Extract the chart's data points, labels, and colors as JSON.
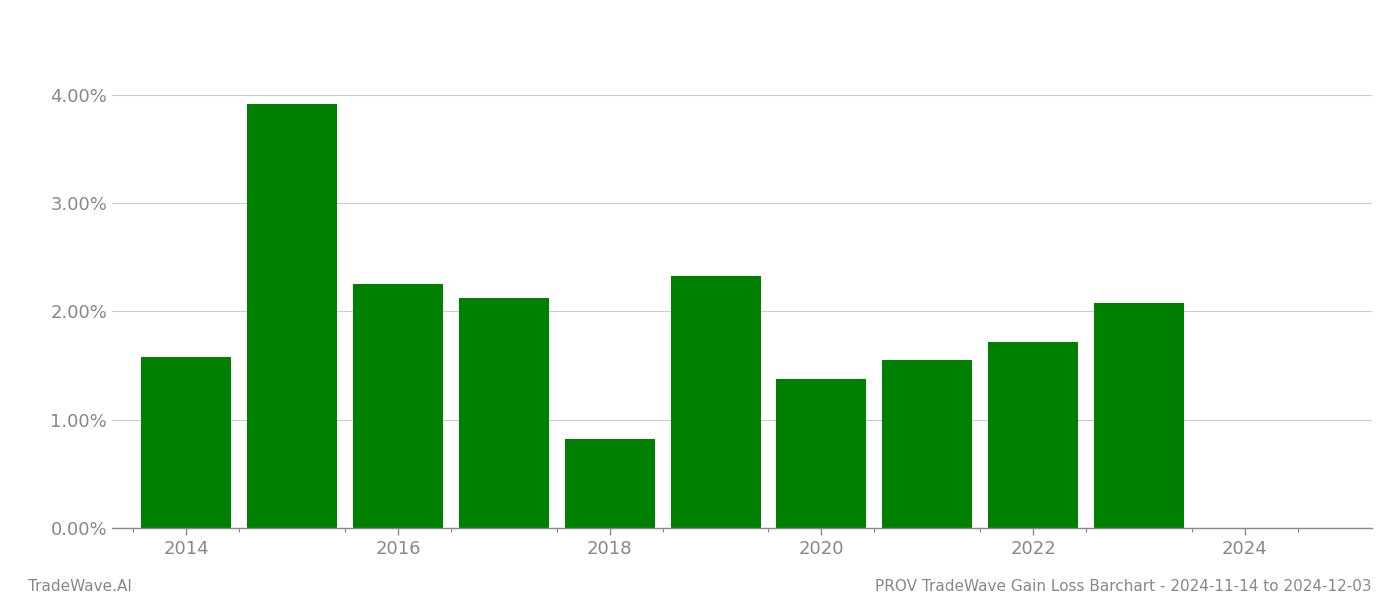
{
  "years": [
    2014,
    2015,
    2016,
    2017,
    2018,
    2019,
    2020,
    2021,
    2022,
    2023
  ],
  "values": [
    0.0158,
    0.0392,
    0.0225,
    0.0212,
    0.0082,
    0.0233,
    0.0138,
    0.0155,
    0.0172,
    0.0208
  ],
  "bar_color": "#008000",
  "background_color": "#ffffff",
  "grid_color": "#cccccc",
  "tick_color": "#888888",
  "title_text": "PROV TradeWave Gain Loss Barchart - 2024-11-14 to 2024-12-03",
  "watermark_text": "TradeWave.AI",
  "title_fontsize": 11,
  "watermark_fontsize": 11,
  "tick_fontsize": 13,
  "ylim": [
    0,
    0.046
  ],
  "yticks": [
    0.0,
    0.01,
    0.02,
    0.03,
    0.04
  ],
  "xlim": [
    2013.3,
    2025.2
  ],
  "xticks": [
    2014,
    2016,
    2018,
    2020,
    2022,
    2024
  ],
  "bar_width": 0.85
}
